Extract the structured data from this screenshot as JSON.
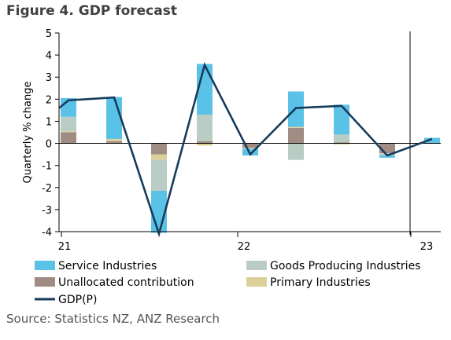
{
  "title": "Figure 4. GDP forecast",
  "source": "Source: Statistics NZ, ANZ Research",
  "chart_data": {
    "type": "bar",
    "ylabel": "Quarterly % change",
    "ylim": [
      -4,
      5
    ],
    "yticks": [
      -4,
      -3,
      -2,
      -1,
      0,
      1,
      2,
      3,
      4,
      5
    ],
    "x_labels": [
      "21",
      "22",
      "23"
    ],
    "forecast_divider": true,
    "legend_position": "bottom",
    "series": [
      {
        "name": "Service Industries",
        "color": "#5bc2e7",
        "values": [
          0.85,
          1.9,
          -1.9,
          2.3,
          -0.3,
          1.6,
          1.35,
          -0.1,
          0.25
        ]
      },
      {
        "name": "Goods Producing Industries",
        "color": "#b9cdc4",
        "values": [
          0.65,
          0.0,
          -1.4,
          1.2,
          -0.05,
          -0.75,
          0.35,
          -0.1,
          0.0
        ]
      },
      {
        "name": "Unallocated contribution",
        "color": "#a08c83",
        "values": [
          0.5,
          0.1,
          -0.5,
          0.1,
          -0.2,
          0.7,
          0.05,
          -0.45,
          0.0
        ]
      },
      {
        "name": "Primary Industries",
        "color": "#dcd09a",
        "values": [
          0.05,
          0.1,
          -0.25,
          -0.1,
          0.0,
          0.05,
          -0.05,
          0.0,
          0.0
        ]
      }
    ],
    "line": {
      "name": "GDP(P)",
      "color": "#173b5b",
      "values": [
        1.95,
        2.08,
        -4.1,
        3.55,
        -0.5,
        1.6,
        1.7,
        -0.55,
        0.2
      ]
    }
  }
}
